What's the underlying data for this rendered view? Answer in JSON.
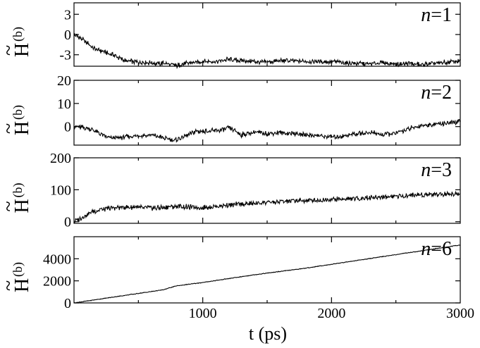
{
  "chart_data": [
    {
      "type": "line",
      "panel_label": "n=1",
      "panel_var": "n",
      "panel_value": "=1",
      "ylabel": "H",
      "ylabel_accent": "~",
      "ylabel_sup": "(b)",
      "ylim": [
        -4.7,
        4.7
      ],
      "yticks": [
        -3,
        0,
        3
      ],
      "xlim": [
        0,
        3000
      ],
      "series": [
        {
          "x": [
            0,
            50,
            100,
            150,
            200,
            250,
            300,
            350,
            400,
            500,
            600,
            700,
            800,
            900,
            1000,
            1100,
            1200,
            1300,
            1400,
            1500,
            1600,
            1700,
            1800,
            1900,
            2000,
            2100,
            2200,
            2300,
            2400,
            2500,
            2600,
            2700,
            2800,
            2900,
            3000
          ],
          "y": [
            0,
            -0.5,
            -1.2,
            -2.0,
            -2.4,
            -2.7,
            -3.0,
            -3.5,
            -3.9,
            -4.1,
            -4.2,
            -4.3,
            -4.6,
            -4.2,
            -4.0,
            -4.0,
            -3.7,
            -3.9,
            -4.0,
            -4.1,
            -3.9,
            -3.9,
            -4.0,
            -4.0,
            -4.0,
            -4.2,
            -4.3,
            -4.3,
            -4.2,
            -4.4,
            -4.3,
            -4.5,
            -4.3,
            -4.1,
            -3.9
          ]
        }
      ]
    },
    {
      "type": "line",
      "panel_label": "n=2",
      "panel_var": "n",
      "panel_value": "=2",
      "ylabel": "H",
      "ylabel_accent": "~",
      "ylabel_sup": "(b)",
      "ylim": [
        -8,
        20
      ],
      "yticks": [
        0,
        10,
        20
      ],
      "xlim": [
        0,
        3000
      ],
      "series": [
        {
          "x": [
            0,
            50,
            100,
            150,
            200,
            250,
            300,
            400,
            500,
            600,
            700,
            780,
            850,
            950,
            1050,
            1150,
            1200,
            1250,
            1300,
            1400,
            1500,
            1600,
            1700,
            1800,
            1900,
            2000,
            2100,
            2200,
            2300,
            2400,
            2500,
            2600,
            2700,
            2800,
            2900,
            3000
          ],
          "y": [
            0,
            -0.3,
            -0.5,
            -1.5,
            -3,
            -4.5,
            -5,
            -4.5,
            -4,
            -3.5,
            -5,
            -6,
            -4.5,
            -2,
            -2,
            -1.5,
            -0.5,
            -2,
            -3.5,
            -2.5,
            -3,
            -2.5,
            -3,
            -3.5,
            -4,
            -4.5,
            -4,
            -3,
            -2.5,
            -3.5,
            -3,
            -1,
            0.5,
            1,
            1.5,
            2
          ]
        }
      ]
    },
    {
      "type": "line",
      "panel_label": "n=3",
      "panel_var": "n",
      "panel_value": "=3",
      "ylabel": "H",
      "ylabel_accent": "~",
      "ylabel_sup": "(b)",
      "ylim": [
        -5,
        200
      ],
      "yticks": [
        0,
        100,
        200
      ],
      "xlim": [
        0,
        3000
      ],
      "series": [
        {
          "x": [
            0,
            25,
            50,
            100,
            150,
            200,
            300,
            400,
            500,
            600,
            700,
            800,
            900,
            1000,
            1100,
            1200,
            1300,
            1400,
            1500,
            1600,
            1700,
            1800,
            1900,
            2000,
            2100,
            2200,
            2300,
            2400,
            2500,
            2600,
            2700,
            2800,
            2900,
            3000
          ],
          "y": [
            0,
            5,
            10,
            22,
            32,
            38,
            42,
            46,
            44,
            43,
            45,
            48,
            46,
            44,
            48,
            52,
            55,
            57,
            60,
            63,
            66,
            66,
            67,
            70,
            71,
            73,
            75,
            77,
            80,
            82,
            85,
            86,
            87,
            87
          ]
        }
      ]
    },
    {
      "type": "line",
      "panel_label": "n=6",
      "panel_var": "n",
      "panel_value": "=6",
      "ylabel": "H",
      "ylabel_accent": "~",
      "ylabel_sup": "(b)",
      "ylim": [
        0,
        6000
      ],
      "yticks": [
        0,
        2000,
        4000
      ],
      "xlim": [
        0,
        3000
      ],
      "series": [
        {
          "x": [
            0,
            100,
            200,
            300,
            400,
            500,
            600,
            700,
            750,
            800,
            900,
            1000,
            1200,
            1400,
            1600,
            1800,
            2000,
            2200,
            2400,
            2600,
            2800,
            3000
          ],
          "y": [
            0,
            170,
            350,
            520,
            690,
            860,
            1030,
            1200,
            1400,
            1550,
            1700,
            1850,
            2200,
            2550,
            2850,
            3150,
            3500,
            3850,
            4200,
            4550,
            4900,
            5250
          ]
        }
      ]
    }
  ],
  "x_axis": {
    "ticks": [
      1000,
      2000,
      3000
    ],
    "title": "t (ps)"
  }
}
